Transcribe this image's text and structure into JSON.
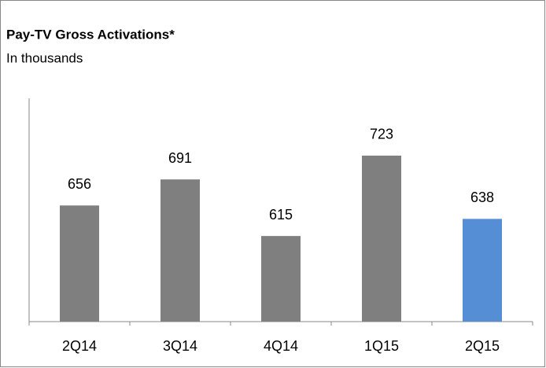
{
  "chart_data": {
    "type": "bar",
    "title": "Pay-TV Gross Activations*",
    "subtitle": "In thousands",
    "categories": [
      "2Q14",
      "3Q14",
      "4Q14",
      "1Q15",
      "2Q15"
    ],
    "values": [
      656,
      691,
      615,
      723,
      638
    ],
    "colors": [
      "#7f7f7f",
      "#7f7f7f",
      "#7f7f7f",
      "#7f7f7f",
      "#558ed5"
    ],
    "ylim": [
      500,
      800
    ]
  }
}
